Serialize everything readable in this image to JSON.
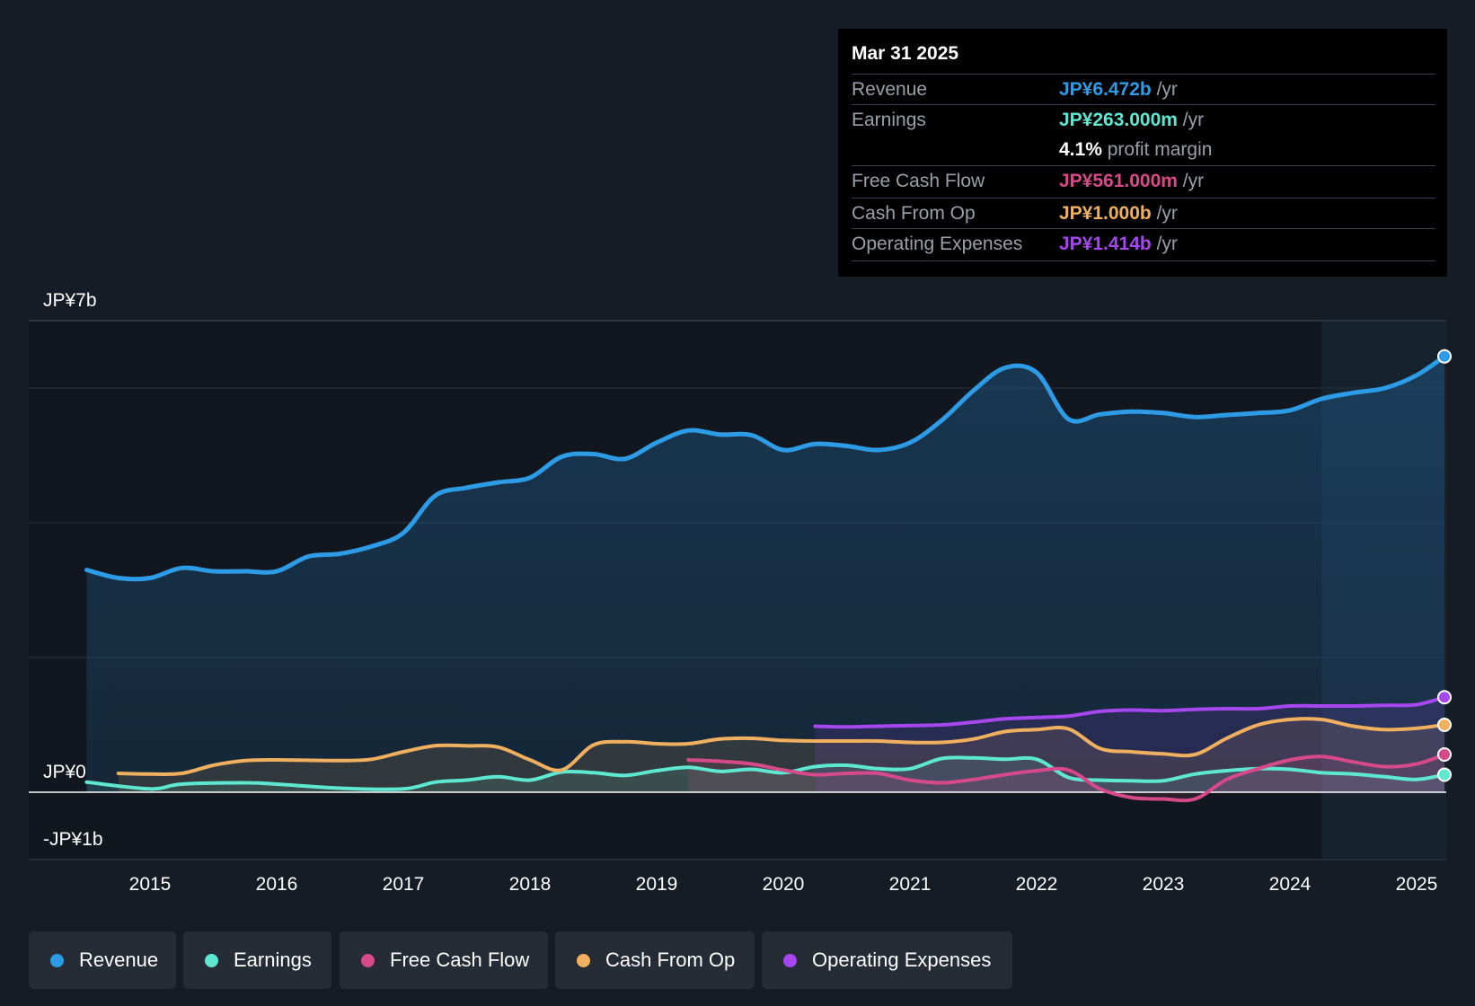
{
  "tooltip": {
    "date": "Mar 31 2025",
    "rows": [
      {
        "label": "Revenue",
        "value": "JP¥6.472b",
        "suffix": "/yr",
        "color": "#2d9be6"
      },
      {
        "label": "Earnings",
        "value": "JP¥263.000m",
        "suffix": "/yr",
        "color": "#5ee8d2"
      },
      {
        "label": "",
        "value": "4.1%",
        "suffix": "profit margin",
        "color": "#ffffff"
      },
      {
        "label": "Free Cash Flow",
        "value": "JP¥561.000m",
        "suffix": "/yr",
        "color": "#d64a8a"
      },
      {
        "label": "Cash From Op",
        "value": "JP¥1.000b",
        "suffix": "/yr",
        "color": "#f0b060"
      },
      {
        "label": "Operating Expenses",
        "value": "JP¥1.414b",
        "suffix": "/yr",
        "color": "#a647f0"
      }
    ]
  },
  "legend": [
    {
      "label": "Revenue",
      "color": "#2d9be6"
    },
    {
      "label": "Earnings",
      "color": "#5ee8d2"
    },
    {
      "label": "Free Cash Flow",
      "color": "#d64a8a"
    },
    {
      "label": "Cash From Op",
      "color": "#f0b060"
    },
    {
      "label": "Operating Expenses",
      "color": "#a647f0"
    }
  ],
  "chart_data": {
    "type": "area",
    "title": "",
    "xlabel": "",
    "ylabel": "",
    "ylim": [
      -1,
      7
    ],
    "xlim": [
      2014.5,
      2025.25
    ],
    "y_axis_labels": [
      "JP¥7b",
      "JP¥0",
      "-JP¥1b"
    ],
    "x_tick_labels": [
      "2015",
      "2016",
      "2017",
      "2018",
      "2019",
      "2020",
      "2021",
      "2022",
      "2023",
      "2024",
      "2025"
    ],
    "forecast_region_start": 2024.25,
    "series": [
      {
        "name": "Revenue",
        "color": "#2d9be6",
        "x": [
          2014.5,
          2014.75,
          2015.0,
          2015.25,
          2015.5,
          2015.75,
          2016.0,
          2016.25,
          2016.5,
          2016.75,
          2017.0,
          2017.25,
          2017.5,
          2017.75,
          2018.0,
          2018.25,
          2018.5,
          2018.75,
          2019.0,
          2019.25,
          2019.5,
          2019.75,
          2020.0,
          2020.25,
          2020.5,
          2020.75,
          2021.0,
          2021.25,
          2021.5,
          2021.75,
          2022.0,
          2022.25,
          2022.5,
          2022.75,
          2023.0,
          2023.25,
          2023.5,
          2023.75,
          2024.0,
          2024.25,
          2024.5,
          2024.75,
          2025.0,
          2025.25
        ],
        "values": [
          3.3,
          3.18,
          3.18,
          3.33,
          3.28,
          3.28,
          3.28,
          3.5,
          3.54,
          3.65,
          3.85,
          4.4,
          4.52,
          4.6,
          4.67,
          4.98,
          5.02,
          4.95,
          5.19,
          5.37,
          5.31,
          5.3,
          5.08,
          5.17,
          5.14,
          5.08,
          5.19,
          5.52,
          5.96,
          6.3,
          6.23,
          5.54,
          5.61,
          5.65,
          5.63,
          5.57,
          5.6,
          5.63,
          5.67,
          5.84,
          5.93,
          6.0,
          6.19,
          6.47
        ]
      },
      {
        "name": "Earnings",
        "color": "#5ee8d2",
        "x": [
          2014.5,
          2015.0,
          2015.25,
          2015.75,
          2016.0,
          2016.5,
          2017.0,
          2017.25,
          2017.5,
          2017.75,
          2018.0,
          2018.25,
          2018.5,
          2018.75,
          2019.0,
          2019.25,
          2019.5,
          2019.75,
          2020.0,
          2020.25,
          2020.5,
          2020.75,
          2021.0,
          2021.25,
          2021.5,
          2021.75,
          2022.0,
          2022.25,
          2022.5,
          2022.75,
          2023.0,
          2023.25,
          2023.5,
          2023.75,
          2024.0,
          2024.25,
          2024.5,
          2024.75,
          2025.0,
          2025.25
        ],
        "values": [
          0.15,
          0.05,
          0.12,
          0.14,
          0.12,
          0.06,
          0.05,
          0.15,
          0.18,
          0.23,
          0.18,
          0.3,
          0.29,
          0.25,
          0.32,
          0.37,
          0.31,
          0.34,
          0.29,
          0.38,
          0.4,
          0.35,
          0.35,
          0.5,
          0.51,
          0.49,
          0.49,
          0.22,
          0.18,
          0.17,
          0.17,
          0.27,
          0.32,
          0.35,
          0.34,
          0.29,
          0.27,
          0.23,
          0.19,
          0.26
        ]
      },
      {
        "name": "Free Cash Flow",
        "color": "#d64a8a",
        "x": [
          2019.25,
          2019.5,
          2019.75,
          2020.0,
          2020.25,
          2020.5,
          2020.75,
          2021.0,
          2021.25,
          2021.5,
          2021.75,
          2022.0,
          2022.25,
          2022.5,
          2022.75,
          2023.0,
          2023.25,
          2023.5,
          2023.75,
          2024.0,
          2024.25,
          2024.5,
          2024.75,
          2025.0,
          2025.25
        ],
        "values": [
          0.48,
          0.46,
          0.42,
          0.33,
          0.26,
          0.28,
          0.28,
          0.18,
          0.14,
          0.19,
          0.26,
          0.32,
          0.33,
          0.05,
          -0.08,
          -0.1,
          -0.1,
          0.19,
          0.35,
          0.48,
          0.53,
          0.45,
          0.38,
          0.42,
          0.56
        ]
      },
      {
        "name": "Cash From Op",
        "color": "#f0b060",
        "x": [
          2014.75,
          2015.0,
          2015.25,
          2015.5,
          2015.75,
          2016.0,
          2016.5,
          2016.75,
          2017.0,
          2017.25,
          2017.5,
          2017.75,
          2018.0,
          2018.25,
          2018.5,
          2018.75,
          2019.0,
          2019.25,
          2019.5,
          2019.75,
          2020.0,
          2020.25,
          2020.5,
          2020.75,
          2021.0,
          2021.25,
          2021.5,
          2021.75,
          2022.0,
          2022.25,
          2022.5,
          2022.75,
          2023.0,
          2023.25,
          2023.5,
          2023.75,
          2024.0,
          2024.25,
          2024.5,
          2024.75,
          2025.0,
          2025.25
        ],
        "values": [
          0.28,
          0.27,
          0.28,
          0.4,
          0.47,
          0.48,
          0.47,
          0.49,
          0.6,
          0.69,
          0.69,
          0.67,
          0.48,
          0.33,
          0.7,
          0.75,
          0.72,
          0.72,
          0.79,
          0.8,
          0.77,
          0.76,
          0.76,
          0.76,
          0.74,
          0.74,
          0.79,
          0.9,
          0.93,
          0.94,
          0.65,
          0.6,
          0.57,
          0.56,
          0.8,
          1.0,
          1.08,
          1.08,
          0.98,
          0.93,
          0.95,
          1.0
        ]
      },
      {
        "name": "Operating Expenses",
        "color": "#a647f0",
        "x": [
          2020.25,
          2020.5,
          2020.75,
          2021.0,
          2021.25,
          2021.5,
          2021.75,
          2022.0,
          2022.25,
          2022.5,
          2022.75,
          2023.0,
          2023.25,
          2023.5,
          2023.75,
          2024.0,
          2024.25,
          2024.5,
          2024.75,
          2025.0,
          2025.25
        ],
        "values": [
          0.98,
          0.97,
          0.98,
          0.99,
          1.0,
          1.04,
          1.09,
          1.11,
          1.13,
          1.2,
          1.22,
          1.21,
          1.23,
          1.24,
          1.24,
          1.28,
          1.28,
          1.28,
          1.29,
          1.3,
          1.41
        ]
      }
    ]
  }
}
